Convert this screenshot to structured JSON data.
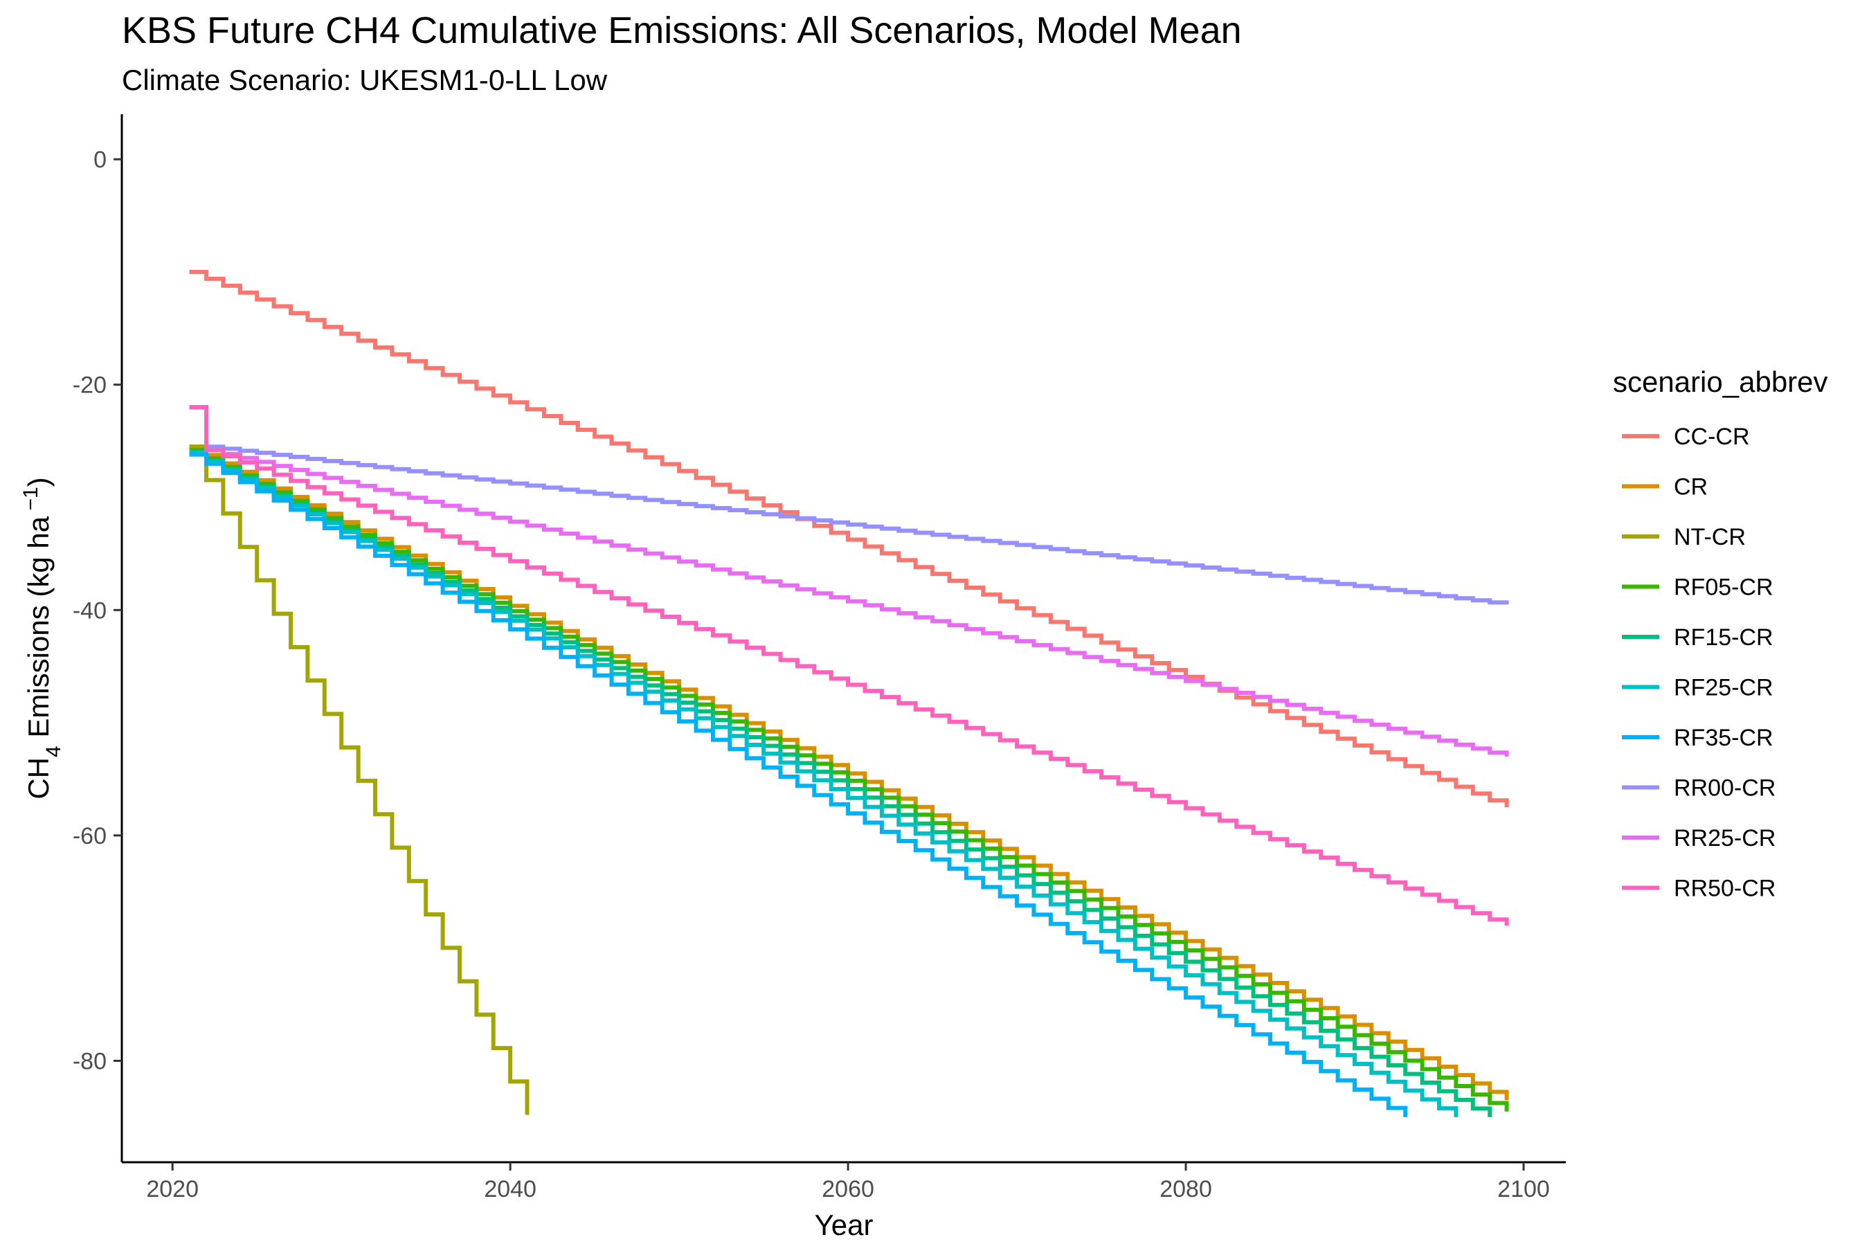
{
  "chart_data": {
    "type": "line",
    "title": "KBS  Future CH4 Cumulative Emissions: All Scenarios, Model Mean",
    "subtitle": "Climate Scenario: UKESM1-0-LL Low",
    "xlabel": "Year",
    "ylabel_main": "CH",
    "ylabel_sub": "4",
    "ylabel_rest": " Emissions (kg ha",
    "ylabel_sup": " −1",
    "ylabel_close": ")",
    "xlim": [
      2017,
      2102.5
    ],
    "ylim": [
      -89,
      4
    ],
    "xticks": [
      2020,
      2040,
      2060,
      2080,
      2100
    ],
    "yticks": [
      0,
      -20,
      -40,
      -60,
      -80
    ],
    "grid": false,
    "legend_title": "scenario_abbrev",
    "legend_position": "right",
    "series": [
      {
        "name": "CC-CR",
        "color": "#F8766D",
        "points": [
          [
            2021,
            -10.0
          ],
          [
            2099,
            -57.5
          ]
        ]
      },
      {
        "name": "CR",
        "color": "#D89000",
        "points": [
          [
            2021,
            -25.5
          ],
          [
            2099,
            -83.5
          ]
        ]
      },
      {
        "name": "NT-CR",
        "color": "#A3A500",
        "points": [
          [
            2021,
            -25.5
          ],
          [
            2041,
            -84.8
          ]
        ]
      },
      {
        "name": "RF05-CR",
        "color": "#39B600",
        "points": [
          [
            2021,
            -25.8
          ],
          [
            2099,
            -84.5
          ]
        ]
      },
      {
        "name": "RF15-CR",
        "color": "#00BF7D",
        "points": [
          [
            2021,
            -26.0
          ],
          [
            2098,
            -85.0
          ]
        ]
      },
      {
        "name": "RF25-CR",
        "color": "#00BFC4",
        "points": [
          [
            2021,
            -26.0
          ],
          [
            2096,
            -85.0
          ]
        ]
      },
      {
        "name": "RF35-CR",
        "color": "#00B0F6",
        "points": [
          [
            2021,
            -26.2
          ],
          [
            2093,
            -85.0
          ]
        ]
      },
      {
        "name": "RR00-CR",
        "color": "#9590FF",
        "points": [
          [
            2021,
            -22.0
          ],
          [
            2022,
            -25.5
          ],
          [
            2099,
            -39.5
          ]
        ]
      },
      {
        "name": "RR25-CR",
        "color": "#E76BF3",
        "points": [
          [
            2021,
            -22.0
          ],
          [
            2022,
            -25.8
          ],
          [
            2099,
            -53.0
          ]
        ]
      },
      {
        "name": "RR50-CR",
        "color": "#FF62BC",
        "points": [
          [
            2021,
            -22.0
          ],
          [
            2022,
            -25.8
          ],
          [
            2099,
            -68.0
          ]
        ]
      }
    ]
  }
}
